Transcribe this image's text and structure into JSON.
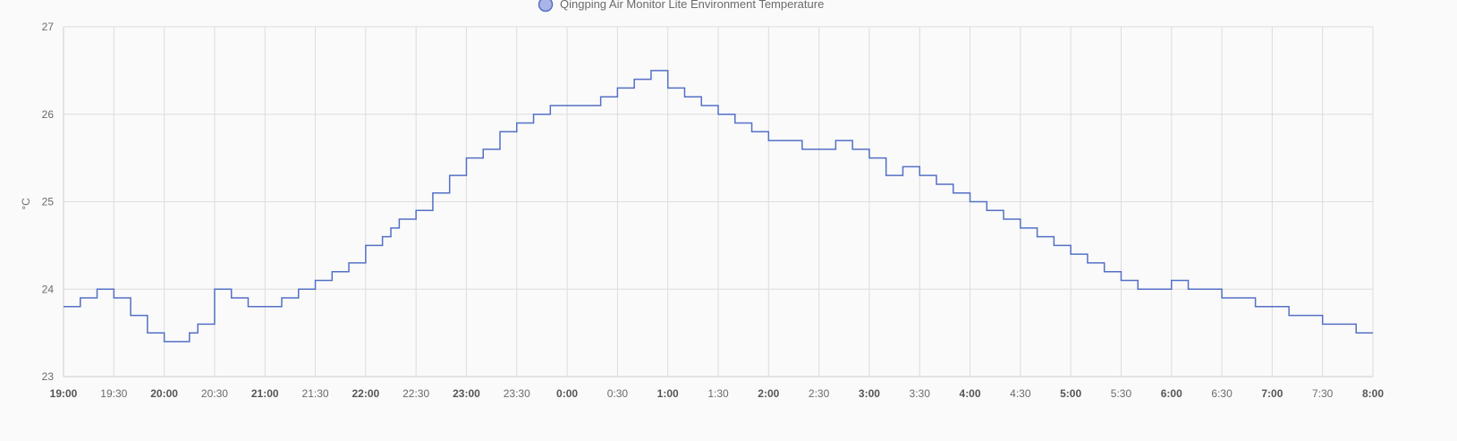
{
  "chart_data": {
    "type": "line",
    "step": true,
    "title": "",
    "series": [
      {
        "name": "Qingping Air Monitor Lite Environment Temperature",
        "color": "#5470c6",
        "x": [
          "19:00",
          "19:10",
          "19:20",
          "19:30",
          "19:40",
          "19:50",
          "20:00",
          "20:10",
          "20:15",
          "20:20",
          "20:30",
          "20:40",
          "20:50",
          "21:00",
          "21:10",
          "21:20",
          "21:30",
          "21:40",
          "21:50",
          "22:00",
          "22:10",
          "22:15",
          "22:20",
          "22:30",
          "22:40",
          "22:50",
          "23:00",
          "23:10",
          "23:20",
          "23:30",
          "23:40",
          "23:50",
          "0:00",
          "0:10",
          "0:20",
          "0:30",
          "0:40",
          "0:50",
          "1:00",
          "1:10",
          "1:20",
          "1:30",
          "1:40",
          "1:50",
          "2:00",
          "2:10",
          "2:20",
          "2:30",
          "2:40",
          "2:50",
          "3:00",
          "3:10",
          "3:20",
          "3:30",
          "3:40",
          "3:50",
          "4:00",
          "4:10",
          "4:20",
          "4:30",
          "4:40",
          "4:50",
          "5:00",
          "5:10",
          "5:20",
          "5:30",
          "5:40",
          "5:50",
          "6:00",
          "6:10",
          "6:20",
          "6:30",
          "6:40",
          "6:50",
          "7:00",
          "7:10",
          "7:20",
          "7:30",
          "7:40",
          "7:50",
          "8:00"
        ],
        "values": [
          23.8,
          23.9,
          24.0,
          23.9,
          23.7,
          23.5,
          23.4,
          23.4,
          23.5,
          23.6,
          24.0,
          23.9,
          23.8,
          23.8,
          23.9,
          24.0,
          24.1,
          24.2,
          24.3,
          24.5,
          24.6,
          24.7,
          24.8,
          24.9,
          25.1,
          25.3,
          25.5,
          25.6,
          25.8,
          25.9,
          26.0,
          26.1,
          26.1,
          26.1,
          26.2,
          26.3,
          26.4,
          26.5,
          26.3,
          26.2,
          26.1,
          26.0,
          25.9,
          25.8,
          25.7,
          25.7,
          25.6,
          25.6,
          25.7,
          25.6,
          25.5,
          25.3,
          25.4,
          25.3,
          25.2,
          25.1,
          25.0,
          24.9,
          24.8,
          24.7,
          24.6,
          24.5,
          24.4,
          24.3,
          24.2,
          24.1,
          24.0,
          24.0,
          24.1,
          24.0,
          24.0,
          23.9,
          23.9,
          23.8,
          23.8,
          23.7,
          23.7,
          23.6,
          23.6,
          23.5,
          23.5
        ],
        "note_x_unit": "time"
      }
    ],
    "xlabel": "",
    "ylabel": "°C",
    "ylim": [
      23,
      27
    ],
    "yticks": [
      "23",
      "24",
      "25",
      "26",
      "27"
    ],
    "xticks": [
      {
        "label": "19:00",
        "major": true
      },
      {
        "label": "19:30",
        "major": false
      },
      {
        "label": "20:00",
        "major": true
      },
      {
        "label": "20:30",
        "major": false
      },
      {
        "label": "21:00",
        "major": true
      },
      {
        "label": "21:30",
        "major": false
      },
      {
        "label": "22:00",
        "major": true
      },
      {
        "label": "22:30",
        "major": false
      },
      {
        "label": "23:00",
        "major": true
      },
      {
        "label": "23:30",
        "major": false
      },
      {
        "label": "0:00",
        "major": true
      },
      {
        "label": "0:30",
        "major": false
      },
      {
        "label": "1:00",
        "major": true
      },
      {
        "label": "1:30",
        "major": false
      },
      {
        "label": "2:00",
        "major": true
      },
      {
        "label": "2:30",
        "major": false
      },
      {
        "label": "3:00",
        "major": true
      },
      {
        "label": "3:30",
        "major": false
      },
      {
        "label": "4:00",
        "major": true
      },
      {
        "label": "4:30",
        "major": false
      },
      {
        "label": "5:00",
        "major": true
      },
      {
        "label": "5:30",
        "major": false
      },
      {
        "label": "6:00",
        "major": true
      },
      {
        "label": "6:30",
        "major": false
      },
      {
        "label": "7:00",
        "major": true
      },
      {
        "label": "7:30",
        "major": false
      },
      {
        "label": "8:00",
        "major": true
      }
    ],
    "grid": true,
    "legend": "top-center"
  }
}
